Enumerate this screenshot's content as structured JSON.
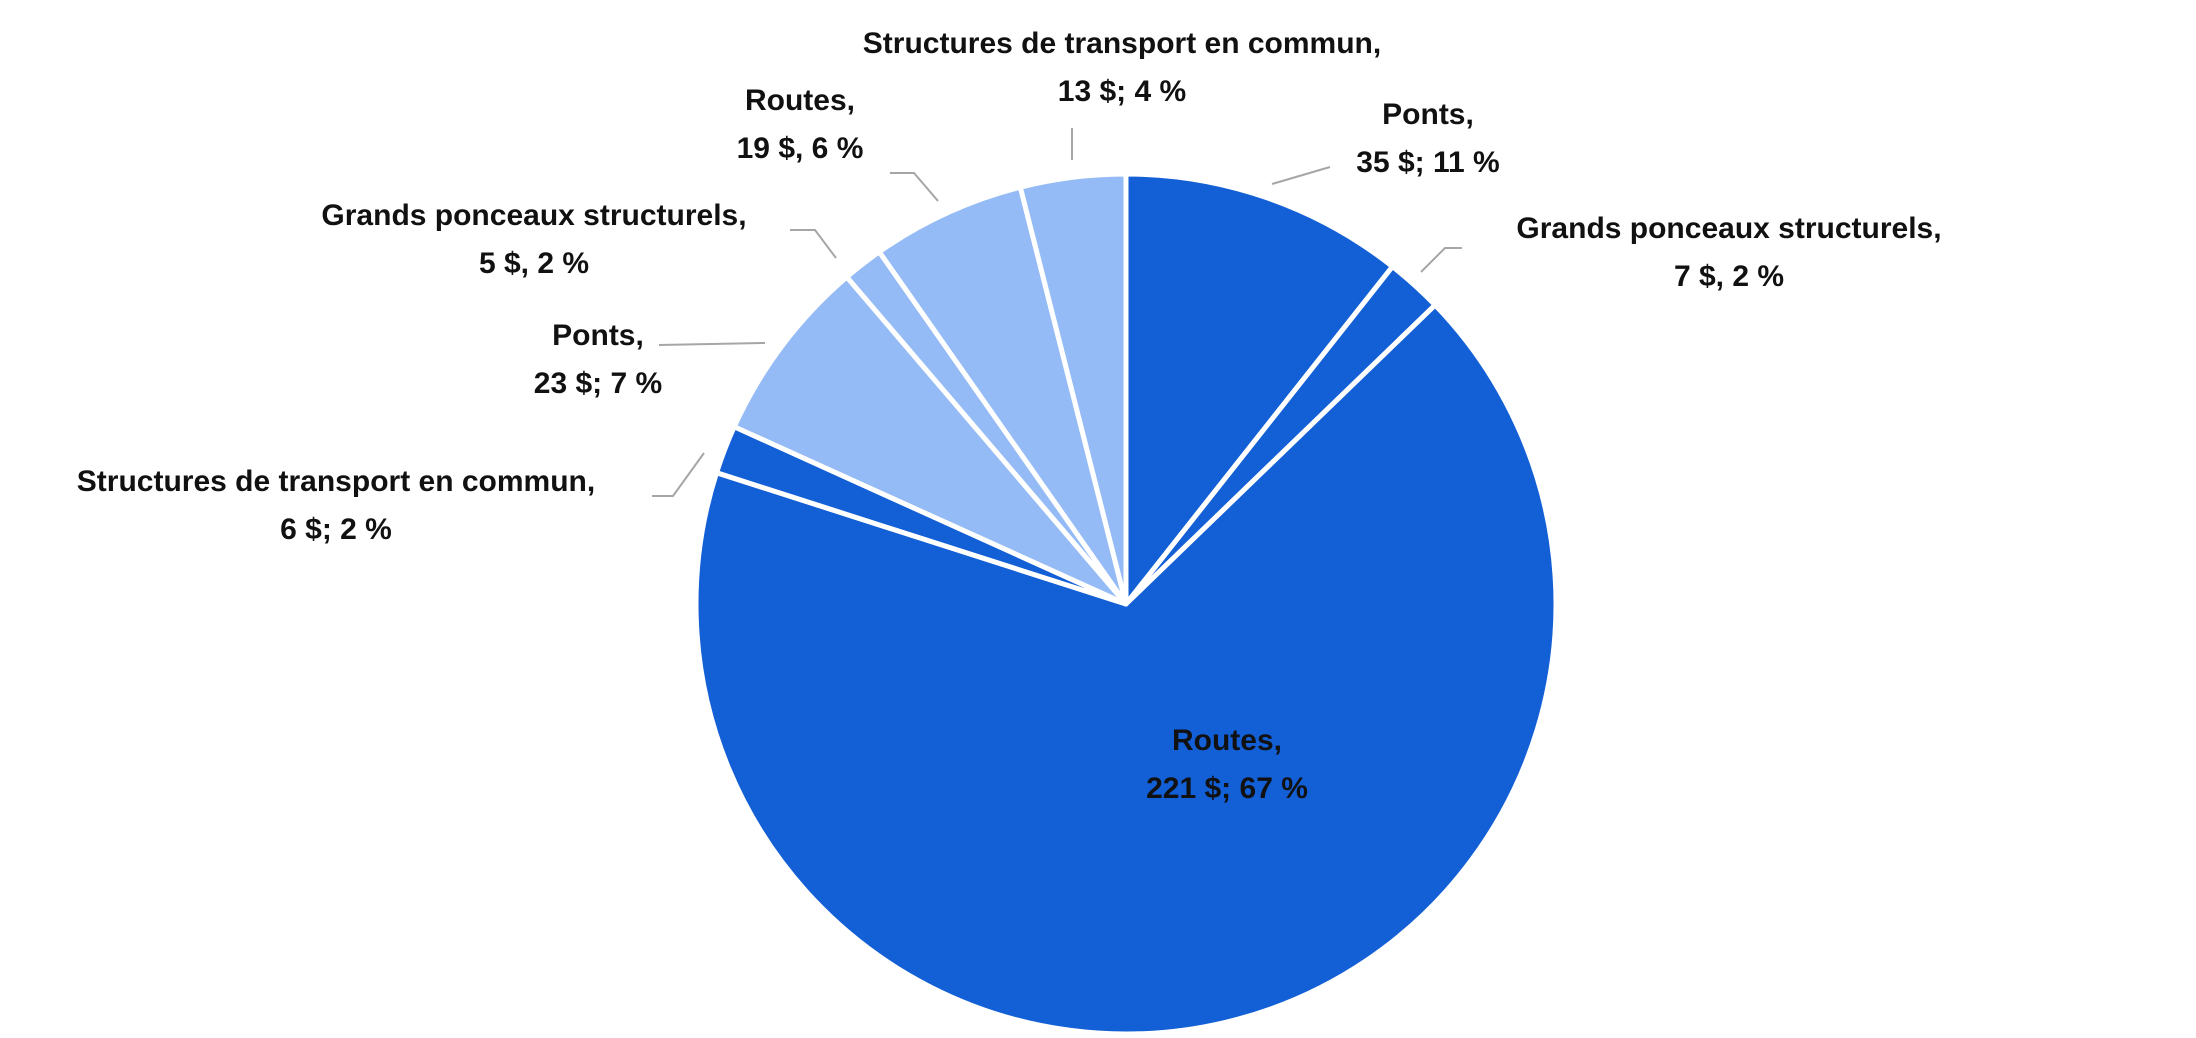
{
  "chart_data": {
    "type": "pie",
    "categories": [
      "Ponts,",
      "Grands ponceaux structurels,",
      "Routes,",
      "Structures de transport en commun,",
      "Ponts,",
      "Grands ponceaux structurels,",
      "Routes,",
      "Structures de transport en commun,"
    ],
    "values": [
      35,
      7,
      221,
      6,
      23,
      5,
      19,
      13
    ],
    "value_labels": [
      "35 $; 11 %",
      "7 $, 2 %",
      "221 $; 67 %",
      "6 $; 2 %",
      "23 $; 7 %",
      "5 $, 2 %",
      "19 $, 6 %",
      "13 $; 4 %"
    ],
    "colors": [
      "#135fd6",
      "#135fd6",
      "#135fd6",
      "#135fd6",
      "#94bbf5",
      "#94bbf5",
      "#94bbf5",
      "#94bbf5"
    ]
  }
}
